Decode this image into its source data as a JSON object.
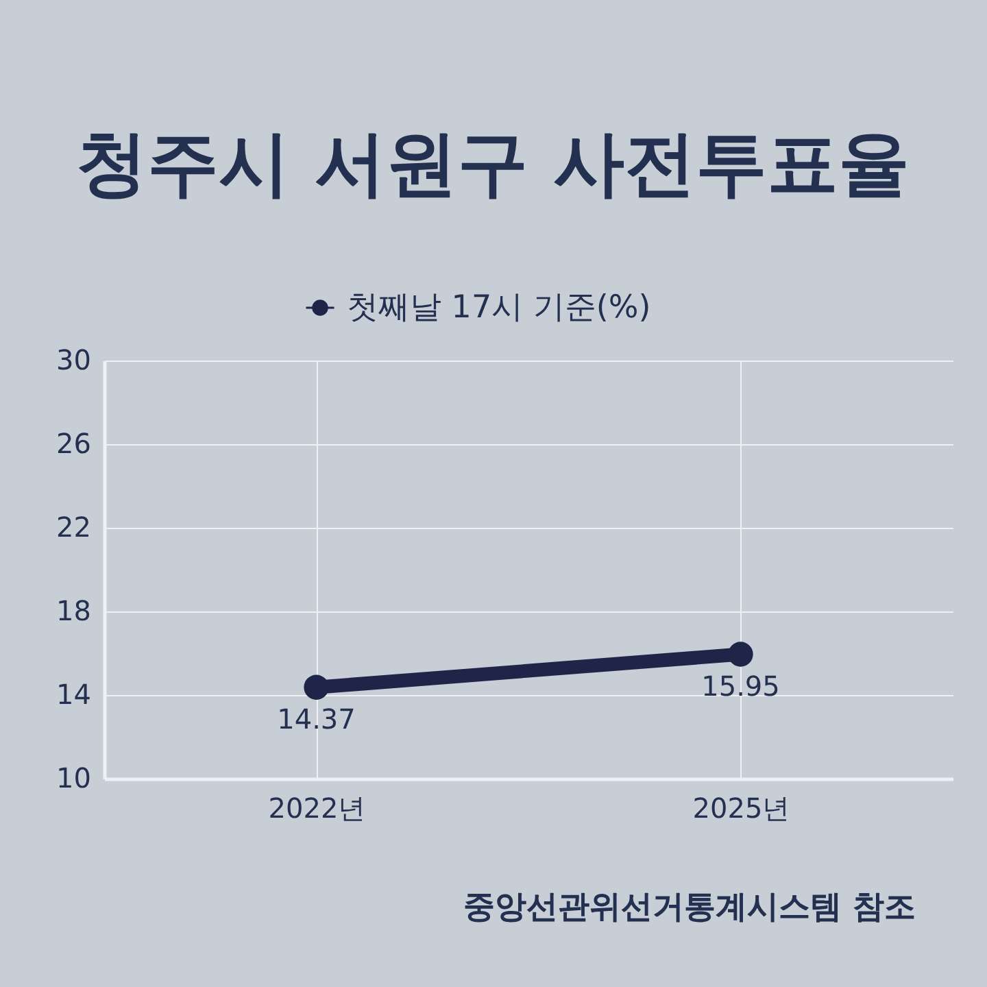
{
  "chart_data": {
    "type": "line",
    "title": "청주시 서원구 사전투표율",
    "categories": [
      "2022년",
      "2025년"
    ],
    "series": [
      {
        "name": "첫째날 17시 기준(%)",
        "color": "#1e2549",
        "values": [
          14.37,
          15.95
        ]
      }
    ],
    "ylim": [
      10,
      30
    ],
    "yticks": [
      10,
      14,
      18,
      22,
      26,
      30
    ],
    "grid": true,
    "legend": "top",
    "marker": "circle",
    "data_labels": true,
    "annotations": [
      "중앙선관위선거통계시스템 참조"
    ]
  }
}
